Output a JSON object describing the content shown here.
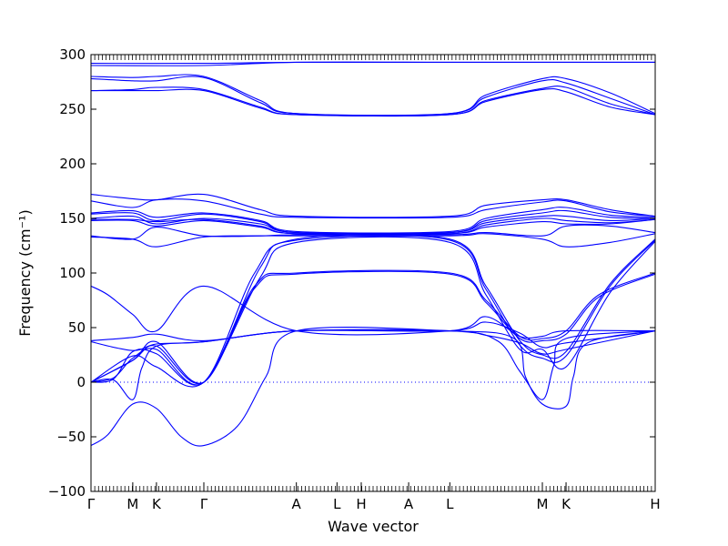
{
  "chart_data": {
    "type": "line",
    "title": "",
    "xlabel": "Wave vector",
    "ylabel": "Frequency (cm⁻¹)",
    "ylim": [
      -100,
      300
    ],
    "yticks": [
      -100,
      -50,
      0,
      50,
      100,
      150,
      200,
      250,
      300
    ],
    "ytick_labels": [
      "−100",
      "−50",
      "0",
      "50",
      "100",
      "150",
      "200",
      "250",
      "300"
    ],
    "grid": false,
    "legend": "none",
    "line_color": "#0000ff",
    "zero_line": {
      "y": 0,
      "style": "dotted",
      "color": "#0000ff"
    },
    "high_symmetry_points": [
      {
        "label": "Γ",
        "x": 0.0
      },
      {
        "label": "M",
        "x": 0.074
      },
      {
        "label": "K",
        "x": 0.116
      },
      {
        "label": "Γ",
        "x": 0.2
      },
      {
        "label": "A",
        "x": 0.364
      },
      {
        "label": "L",
        "x": 0.436
      },
      {
        "label": "H",
        "x": 0.479
      },
      {
        "label": "A",
        "x": 0.563
      },
      {
        "label": "L",
        "x": 0.636
      },
      {
        "label": "M",
        "x": 0.8
      },
      {
        "label": "K",
        "x": 0.842
      },
      {
        "label": "H",
        "x": 1.0
      }
    ],
    "xlim": [
      0,
      1
    ],
    "series": [
      {
        "values": [
          [
            0,
            290
          ],
          [
            0.2,
            290
          ],
          [
            0.364,
            293
          ],
          [
            0.636,
            293
          ],
          [
            0.8,
            293
          ],
          [
            1,
            293
          ]
        ]
      },
      {
        "values": [
          [
            0,
            292
          ],
          [
            0.2,
            292
          ],
          [
            0.364,
            293
          ],
          [
            0.636,
            293
          ],
          [
            1,
            293
          ]
        ]
      },
      {
        "values": [
          [
            0,
            280
          ],
          [
            0.074,
            279
          ],
          [
            0.116,
            280
          ],
          [
            0.2,
            280
          ],
          [
            0.3,
            258
          ],
          [
            0.364,
            246
          ],
          [
            0.636,
            246
          ],
          [
            0.7,
            263
          ],
          [
            0.8,
            278
          ],
          [
            0.842,
            278
          ],
          [
            0.92,
            265
          ],
          [
            1,
            246
          ]
        ]
      },
      {
        "values": [
          [
            0,
            278
          ],
          [
            0.074,
            276
          ],
          [
            0.116,
            276
          ],
          [
            0.2,
            279
          ],
          [
            0.3,
            256
          ],
          [
            0.364,
            246
          ],
          [
            0.636,
            246
          ],
          [
            0.7,
            261
          ],
          [
            0.8,
            276
          ],
          [
            0.842,
            274
          ],
          [
            0.92,
            260
          ],
          [
            1,
            245
          ]
        ]
      },
      {
        "values": [
          [
            0,
            267
          ],
          [
            0.074,
            268
          ],
          [
            0.116,
            270
          ],
          [
            0.2,
            268
          ],
          [
            0.3,
            252
          ],
          [
            0.364,
            245
          ],
          [
            0.636,
            245
          ],
          [
            0.7,
            258
          ],
          [
            0.8,
            269
          ],
          [
            0.842,
            270
          ],
          [
            0.92,
            255
          ],
          [
            1,
            245
          ]
        ]
      },
      {
        "values": [
          [
            0,
            267
          ],
          [
            0.074,
            267
          ],
          [
            0.116,
            267
          ],
          [
            0.2,
            267
          ],
          [
            0.3,
            251
          ],
          [
            0.364,
            245
          ],
          [
            0.636,
            245
          ],
          [
            0.7,
            257
          ],
          [
            0.8,
            268
          ],
          [
            0.842,
            266
          ],
          [
            0.92,
            252
          ],
          [
            1,
            245
          ]
        ]
      },
      {
        "values": [
          [
            0,
            172
          ],
          [
            0.074,
            168
          ],
          [
            0.116,
            167
          ],
          [
            0.2,
            172
          ],
          [
            0.3,
            158
          ],
          [
            0.364,
            152
          ],
          [
            0.636,
            152
          ],
          [
            0.7,
            162
          ],
          [
            0.8,
            167
          ],
          [
            0.842,
            167
          ],
          [
            0.92,
            158
          ],
          [
            1,
            152
          ]
        ]
      },
      {
        "values": [
          [
            0,
            166
          ],
          [
            0.074,
            160
          ],
          [
            0.116,
            167
          ],
          [
            0.2,
            166
          ],
          [
            0.3,
            154
          ],
          [
            0.364,
            151
          ],
          [
            0.636,
            151
          ],
          [
            0.7,
            158
          ],
          [
            0.8,
            165
          ],
          [
            0.842,
            166
          ],
          [
            0.92,
            156
          ],
          [
            1,
            152
          ]
        ]
      },
      {
        "values": [
          [
            0,
            155
          ],
          [
            0.074,
            157
          ],
          [
            0.116,
            151
          ],
          [
            0.2,
            155
          ],
          [
            0.3,
            148
          ],
          [
            0.364,
            138
          ],
          [
            0.636,
            138
          ],
          [
            0.7,
            150
          ],
          [
            0.8,
            158
          ],
          [
            0.842,
            160
          ],
          [
            0.92,
            153
          ],
          [
            1,
            151
          ]
        ]
      },
      {
        "values": [
          [
            0,
            154
          ],
          [
            0.074,
            155
          ],
          [
            0.116,
            148
          ],
          [
            0.2,
            154
          ],
          [
            0.3,
            147
          ],
          [
            0.364,
            137
          ],
          [
            0.636,
            137
          ],
          [
            0.7,
            148
          ],
          [
            0.8,
            155
          ],
          [
            0.842,
            157
          ],
          [
            0.92,
            151
          ],
          [
            1,
            150
          ]
        ]
      },
      {
        "values": [
          [
            0,
            150
          ],
          [
            0.074,
            152
          ],
          [
            0.116,
            145
          ],
          [
            0.2,
            150
          ],
          [
            0.3,
            145
          ],
          [
            0.364,
            137
          ],
          [
            0.636,
            137
          ],
          [
            0.7,
            146
          ],
          [
            0.8,
            152
          ],
          [
            0.842,
            152
          ],
          [
            0.92,
            148
          ],
          [
            1,
            150
          ]
        ]
      },
      {
        "values": [
          [
            0,
            149
          ],
          [
            0.074,
            149
          ],
          [
            0.116,
            147
          ],
          [
            0.2,
            149
          ],
          [
            0.3,
            143
          ],
          [
            0.364,
            136
          ],
          [
            0.636,
            136
          ],
          [
            0.7,
            144
          ],
          [
            0.8,
            150
          ],
          [
            0.842,
            148
          ],
          [
            0.92,
            146
          ],
          [
            1,
            149
          ]
        ]
      },
      {
        "values": [
          [
            0,
            148
          ],
          [
            0.074,
            148
          ],
          [
            0.116,
            143
          ],
          [
            0.2,
            148
          ],
          [
            0.3,
            142
          ],
          [
            0.364,
            136
          ],
          [
            0.636,
            136
          ],
          [
            0.7,
            142
          ],
          [
            0.8,
            147
          ],
          [
            0.842,
            145
          ],
          [
            0.92,
            145
          ],
          [
            1,
            149
          ]
        ]
      },
      {
        "values": [
          [
            0,
            134
          ],
          [
            0.074,
            131
          ],
          [
            0.116,
            142
          ],
          [
            0.2,
            134
          ],
          [
            0.3,
            134
          ],
          [
            0.364,
            135
          ],
          [
            0.636,
            135
          ],
          [
            0.7,
            137
          ],
          [
            0.8,
            134
          ],
          [
            0.842,
            143
          ],
          [
            0.92,
            143
          ],
          [
            1,
            137
          ]
        ]
      },
      {
        "values": [
          [
            0,
            133
          ],
          [
            0.074,
            131
          ],
          [
            0.116,
            124
          ],
          [
            0.2,
            133
          ],
          [
            0.3,
            134
          ],
          [
            0.364,
            134
          ],
          [
            0.636,
            134
          ],
          [
            0.7,
            136
          ],
          [
            0.8,
            131
          ],
          [
            0.842,
            124
          ],
          [
            0.92,
            128
          ],
          [
            1,
            136
          ]
        ]
      },
      {
        "values": [
          [
            0,
            0
          ],
          [
            0.04,
            3
          ],
          [
            0.074,
            28
          ],
          [
            0.116,
            26
          ],
          [
            0.2,
            0
          ],
          [
            0.29,
            100
          ],
          [
            0.364,
            131
          ],
          [
            0.636,
            131
          ],
          [
            0.7,
            88
          ],
          [
            0.76,
            38
          ],
          [
            0.8,
            25
          ],
          [
            0.842,
            28
          ],
          [
            0.92,
            90
          ],
          [
            1,
            131
          ]
        ]
      },
      {
        "values": [
          [
            0,
            0
          ],
          [
            0.04,
            4
          ],
          [
            0.074,
            22
          ],
          [
            0.116,
            30
          ],
          [
            0.2,
            0
          ],
          [
            0.3,
            105
          ],
          [
            0.364,
            130
          ],
          [
            0.636,
            130
          ],
          [
            0.7,
            85
          ],
          [
            0.76,
            34
          ],
          [
            0.8,
            22
          ],
          [
            0.842,
            24
          ],
          [
            0.92,
            88
          ],
          [
            1,
            130
          ]
        ]
      },
      {
        "values": [
          [
            0,
            0
          ],
          [
            0.074,
            24
          ],
          [
            0.116,
            14
          ],
          [
            0.2,
            0
          ],
          [
            0.3,
            96
          ],
          [
            0.364,
            128
          ],
          [
            0.636,
            128
          ],
          [
            0.7,
            80
          ],
          [
            0.76,
            30
          ],
          [
            0.8,
            30
          ],
          [
            0.842,
            14
          ],
          [
            0.92,
            82
          ],
          [
            1,
            129
          ]
        ]
      },
      {
        "values": [
          [
            0,
            0
          ],
          [
            0.074,
            20
          ],
          [
            0.116,
            33
          ],
          [
            0.2,
            0
          ],
          [
            0.29,
            88
          ],
          [
            0.364,
            100
          ],
          [
            0.636,
            100
          ],
          [
            0.7,
            75
          ],
          [
            0.76,
            42
          ],
          [
            0.8,
            40
          ],
          [
            0.842,
            47
          ],
          [
            0.9,
            80
          ],
          [
            1,
            100
          ]
        ]
      },
      {
        "values": [
          [
            0,
            0
          ],
          [
            0.074,
            20
          ],
          [
            0.116,
            37
          ],
          [
            0.2,
            0
          ],
          [
            0.29,
            86
          ],
          [
            0.364,
            99
          ],
          [
            0.636,
            99
          ],
          [
            0.7,
            73
          ],
          [
            0.76,
            40
          ],
          [
            0.8,
            38
          ],
          [
            0.842,
            44
          ],
          [
            0.9,
            78
          ],
          [
            1,
            99
          ]
        ]
      },
      {
        "values": [
          [
            0,
            88
          ],
          [
            0.03,
            80
          ],
          [
            0.074,
            62
          ],
          [
            0.116,
            47
          ],
          [
            0.2,
            88
          ],
          [
            0.364,
            47
          ],
          [
            0.636,
            47
          ],
          [
            0.7,
            60
          ],
          [
            0.76,
            42
          ],
          [
            0.8,
            42
          ],
          [
            0.842,
            47
          ],
          [
            1,
            47
          ]
        ]
      },
      {
        "values": [
          [
            0,
            38
          ],
          [
            0.074,
            41
          ],
          [
            0.116,
            44
          ],
          [
            0.2,
            38
          ],
          [
            0.364,
            47
          ],
          [
            0.636,
            47
          ],
          [
            0.7,
            55
          ],
          [
            0.76,
            45
          ],
          [
            0.8,
            32
          ],
          [
            0.842,
            36
          ],
          [
            1,
            47
          ]
        ]
      },
      {
        "values": [
          [
            0,
            37
          ],
          [
            0.074,
            29
          ],
          [
            0.116,
            35
          ],
          [
            0.2,
            37
          ],
          [
            0.364,
            47
          ],
          [
            0.636,
            47
          ],
          [
            0.7,
            43
          ],
          [
            0.76,
            36
          ],
          [
            0.8,
            26
          ],
          [
            0.842,
            30
          ],
          [
            1,
            47
          ]
        ]
      },
      {
        "values": [
          [
            0,
            0
          ],
          [
            0.04,
            2
          ],
          [
            0.074,
            -16
          ],
          [
            0.09,
            13
          ],
          [
            0.116,
            33
          ],
          [
            0.2,
            37
          ],
          [
            0.364,
            47
          ],
          [
            0.636,
            47
          ],
          [
            0.72,
            38
          ],
          [
            0.76,
            10
          ],
          [
            0.8,
            -16
          ],
          [
            0.82,
            15
          ],
          [
            0.842,
            40
          ],
          [
            1,
            47
          ]
        ]
      },
      {
        "values": [
          [
            0,
            -58
          ],
          [
            0.03,
            -48
          ],
          [
            0.074,
            -20
          ],
          [
            0.116,
            -24
          ],
          [
            0.16,
            -50
          ],
          [
            0.2,
            -58
          ],
          [
            0.26,
            -40
          ],
          [
            0.31,
            5
          ],
          [
            0.364,
            47
          ],
          [
            0.636,
            47
          ],
          [
            0.75,
            40
          ],
          [
            0.77,
            5
          ],
          [
            0.8,
            -20
          ],
          [
            0.842,
            -22
          ],
          [
            0.855,
            5
          ],
          [
            0.88,
            36
          ],
          [
            1,
            47
          ]
        ]
      }
    ]
  }
}
